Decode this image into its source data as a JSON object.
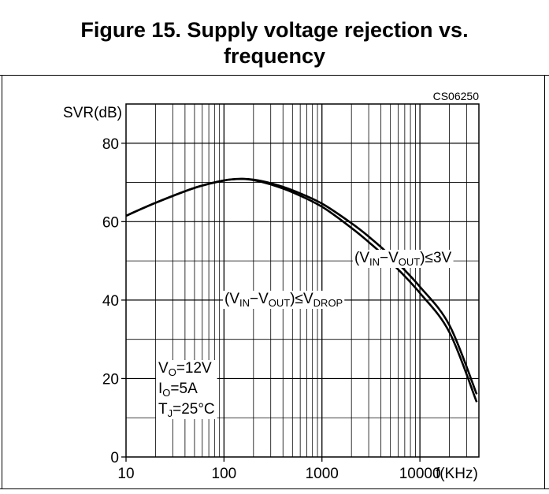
{
  "figure": {
    "title_line1": "Figure 15. Supply voltage rejection vs.",
    "title_line2": "frequency"
  },
  "chart_data": {
    "type": "line",
    "code": "CS06250",
    "ylabel": "SVR(dB)",
    "xlabel": "f(KHz)",
    "x_scale": "log",
    "xlim": [
      10,
      40000
    ],
    "ylim": [
      0,
      90
    ],
    "grid": true,
    "x_ticks": [
      {
        "value": 10,
        "label": "10"
      },
      {
        "value": 100,
        "label": "100"
      },
      {
        "value": 1000,
        "label": "1000"
      },
      {
        "value": 10000,
        "label": "10000"
      }
    ],
    "y_ticks": [
      {
        "value": 0,
        "label": "0"
      },
      {
        "value": 20,
        "label": "20"
      },
      {
        "value": 40,
        "label": "40"
      },
      {
        "value": 60,
        "label": "60"
      },
      {
        "value": 80,
        "label": "80"
      }
    ],
    "series": [
      {
        "name": "(VIN−VOUT)≤3V",
        "label_parts": {
          "open": "(V",
          "sub1": "IN",
          "mid": "−V",
          "sub2": "OUT",
          "close": ")≤3V"
        },
        "x": [
          10,
          20,
          50,
          100,
          150,
          200,
          300,
          500,
          1000,
          2000,
          3000,
          5000,
          10000,
          20000,
          38000
        ],
        "y": [
          61.5,
          64.8,
          68.6,
          70.5,
          70.9,
          70.7,
          69.8,
          68.0,
          64.6,
          59.6,
          56.2,
          51.3,
          43.4,
          33.6,
          16.0
        ]
      },
      {
        "name": "(VIN−VOUT)≤VDROP",
        "label_parts": {
          "open": "(V",
          "sub1": "IN",
          "mid": "−V",
          "sub2": "OUT",
          "close": ")≤V",
          "sub3": "DROP"
        },
        "x": [
          10,
          20,
          50,
          100,
          150,
          200,
          300,
          500,
          1000,
          2000,
          3000,
          5000,
          10000,
          20000,
          38000
        ],
        "y": [
          61.5,
          64.8,
          68.6,
          70.5,
          70.9,
          70.6,
          69.5,
          67.5,
          63.8,
          58.4,
          54.8,
          49.8,
          41.8,
          31.8,
          14.0
        ]
      }
    ],
    "conditions": [
      {
        "sym": "V",
        "sub": "O",
        "val": "=12V"
      },
      {
        "sym": "I",
        "sub": "O",
        "val": "=5A"
      },
      {
        "sym": "T",
        "sub": "J",
        "val": "=25°C"
      }
    ]
  }
}
